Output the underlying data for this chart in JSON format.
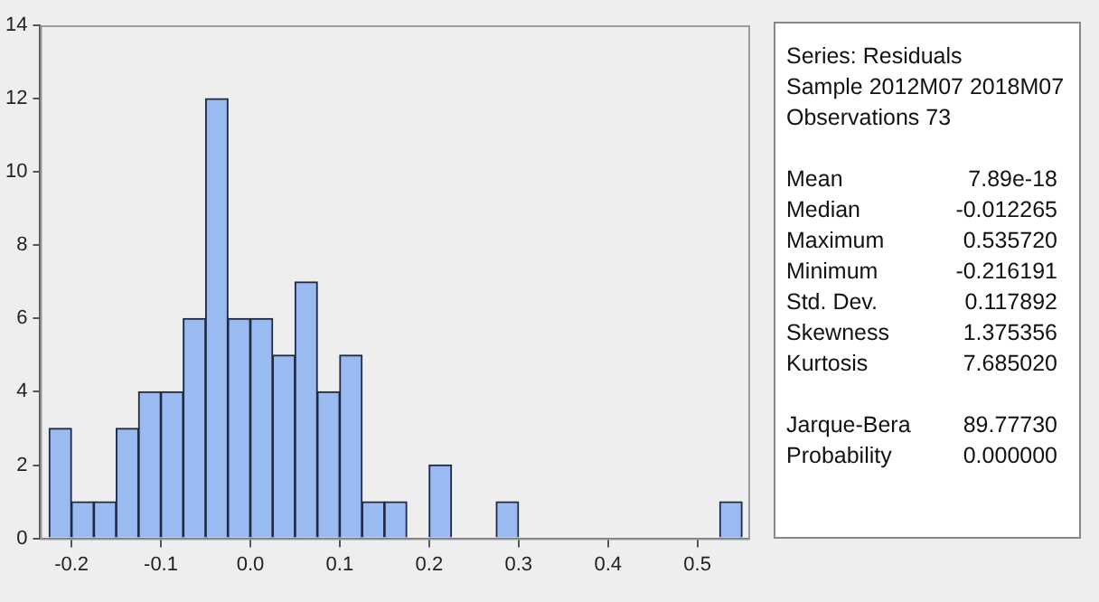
{
  "chart_data": [
    {
      "type": "histogram",
      "bins": [
        -0.225,
        -0.2,
        -0.175,
        -0.15,
        -0.125,
        -0.1,
        -0.075,
        -0.05,
        -0.025,
        0,
        0.025,
        0.05,
        0.075,
        0.1,
        0.125,
        0.15,
        0.175,
        0.2,
        0.225,
        0.25,
        0.275,
        0.3,
        0.325,
        0.35,
        0.375,
        0.4,
        0.425,
        0.45,
        0.475,
        0.5,
        0.525,
        0.55
      ],
      "values": [
        3,
        1,
        1,
        3,
        4,
        4,
        6,
        12,
        6,
        6,
        5,
        7,
        4,
        5,
        1,
        1,
        0,
        2,
        0,
        0,
        1,
        0,
        0,
        0,
        0,
        0,
        0,
        0,
        0,
        0,
        1
      ],
      "color": "#99bbf2",
      "xlim": [
        -0.235,
        0.557
      ],
      "xticks": [
        -0.2,
        -0.1,
        {
          "value": 0,
          "label": "0.0"
        },
        0.1,
        0.2,
        0.3,
        0.4,
        0.5
      ],
      "ylim": [
        0,
        14
      ],
      "yticks": [
        0,
        2,
        4,
        6,
        8,
        10,
        12,
        14
      ],
      "grid": false,
      "legend": false
    },
    {
      "type": "other",
      "annotations": [
        "Series: Residuals",
        "Sample 2012M07 2018M07",
        "Observations 73",
        "Mean\t7.89e-18",
        "Median\t-0.012265",
        "Maximum\t0.535720",
        "Minimum\t-0.216191",
        "Std. Dev.\t0.117892",
        "Skewness\t1.375356",
        "Kurtosis\t7.685020",
        "Jarque-Bera\t89.77730",
        "Probability\t0.000000"
      ]
    }
  ]
}
